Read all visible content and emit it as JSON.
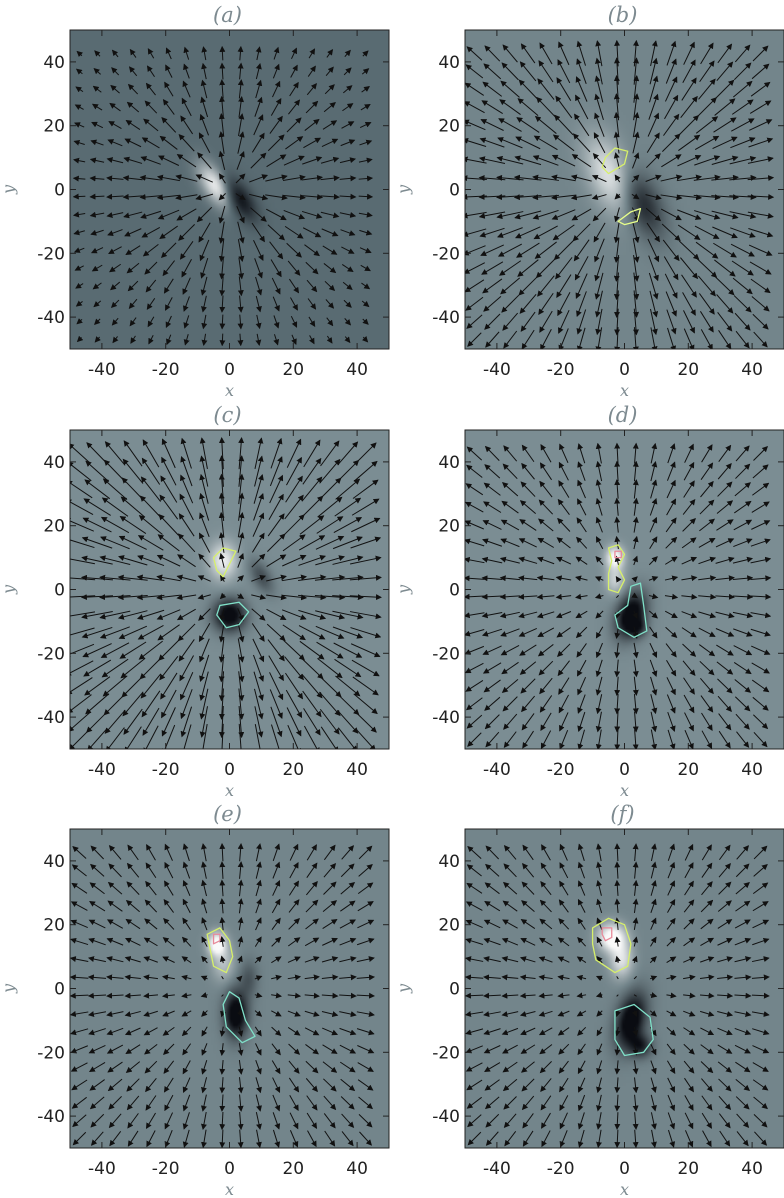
{
  "chart_data": [
    {
      "type": "heatmap",
      "panel_label": "(a)",
      "xlabel": "x",
      "ylabel": "y",
      "xlim": [
        -50,
        50
      ],
      "ylim": [
        -50,
        50
      ],
      "xticks": [
        -40,
        -20,
        0,
        20,
        40
      ],
      "yticks": [
        -40,
        -20,
        0,
        20,
        40
      ],
      "background_color": "#596b72",
      "field": "Bz magnetogram with horizontal velocity arrows",
      "sources": [
        {
          "x": -4,
          "y": 1,
          "sx": 2.6,
          "sy": 5.5,
          "rot": 35,
          "amp": 1.0
        },
        {
          "x": 3,
          "y": -3,
          "sx": 2.6,
          "sy": 5.5,
          "rot": 35,
          "amp": -1.0
        }
      ],
      "flow": {
        "center": [
          0,
          0
        ],
        "radius": 18,
        "strength": 1.0
      },
      "contours": []
    },
    {
      "type": "heatmap",
      "panel_label": "(b)",
      "xlabel": "x",
      "ylabel": "y",
      "xlim": [
        -50,
        50
      ],
      "ylim": [
        -50,
        50
      ],
      "xticks": [
        -40,
        -20,
        0,
        20,
        40
      ],
      "yticks": [
        -40,
        -20,
        0,
        20,
        40
      ],
      "background_color": "#73858b",
      "field": "Bz magnetogram with horizontal velocity arrows",
      "sources": [
        {
          "x": -4,
          "y": 4,
          "sx": 4.5,
          "sy": 9,
          "rot": 25,
          "amp": 0.9
        },
        {
          "x": 5,
          "y": -4,
          "sx": 4,
          "sy": 8,
          "rot": 25,
          "amp": -0.9
        }
      ],
      "flow": {
        "center": [
          0,
          0
        ],
        "radius": 32,
        "strength": 1.2
      },
      "contours": [
        {
          "color": "#d7f06a",
          "points": [
            [
              -6,
              10
            ],
            [
              -3,
              13
            ],
            [
              1,
              12
            ],
            [
              0,
              8
            ],
            [
              -5,
              5
            ],
            [
              -7,
              7
            ]
          ]
        },
        {
          "color": "#e8ff8a",
          "points": [
            [
              -2,
              -10
            ],
            [
              2,
              -7
            ],
            [
              5,
              -6
            ],
            [
              4,
              -10
            ],
            [
              0,
              -11
            ]
          ]
        }
      ]
    },
    {
      "type": "heatmap",
      "panel_label": "(c)",
      "xlabel": "x",
      "ylabel": "y",
      "xlim": [
        -50,
        50
      ],
      "ylim": [
        -50,
        50
      ],
      "xticks": [
        -40,
        -20,
        0,
        20,
        40
      ],
      "yticks": [
        -40,
        -20,
        0,
        20,
        40
      ],
      "background_color": "#7b8d93",
      "field": "Bz magnetogram with horizontal velocity arrows",
      "sources": [
        {
          "x": -2,
          "y": 9,
          "sx": 3,
          "sy": 4,
          "rot": 0,
          "amp": 0.9
        },
        {
          "x": 0,
          "y": -8,
          "sx": 3.5,
          "sy": 3.5,
          "rot": 0,
          "amp": -1.2
        },
        {
          "x": 10,
          "y": 4,
          "sx": 2,
          "sy": 4,
          "rot": 30,
          "amp": -0.5
        }
      ],
      "flow": {
        "center": [
          0,
          0
        ],
        "radius": 45,
        "strength": 1.4
      },
      "contours": [
        {
          "color": "#d7f06a",
          "points": [
            [
              -4,
              6
            ],
            [
              -5,
              10
            ],
            [
              -2,
              13
            ],
            [
              2,
              12
            ],
            [
              0,
              8
            ],
            [
              -2,
              4
            ]
          ]
        },
        {
          "color": "#7fe0c8",
          "points": [
            [
              -4,
              -8
            ],
            [
              -3,
              -5
            ],
            [
              3,
              -4
            ],
            [
              6,
              -7
            ],
            [
              3,
              -11
            ],
            [
              -1,
              -12
            ]
          ]
        }
      ]
    },
    {
      "type": "heatmap",
      "panel_label": "(d)",
      "xlabel": "x",
      "ylabel": "y",
      "xlim": [
        -50,
        50
      ],
      "ylim": [
        -50,
        50
      ],
      "xticks": [
        -40,
        -20,
        0,
        20,
        40
      ],
      "yticks": [
        -40,
        -20,
        0,
        20,
        40
      ],
      "background_color": "#7b8d93",
      "field": "Bz magnetogram with horizontal velocity arrows",
      "sources": [
        {
          "x": -3,
          "y": 10,
          "sx": 2,
          "sy": 2.5,
          "rot": 0,
          "amp": 1.1
        },
        {
          "x": -3,
          "y": 3,
          "sx": 2,
          "sy": 3,
          "rot": 0,
          "amp": 0.6
        },
        {
          "x": 2,
          "y": -8,
          "sx": 3,
          "sy": 5,
          "rot": -20,
          "amp": -1.3
        },
        {
          "x": 4,
          "y": -12,
          "sx": 2,
          "sy": 2,
          "rot": 0,
          "amp": -0.6
        }
      ],
      "flow": {
        "center": [
          0,
          0
        ],
        "radius": 48,
        "strength": 0.9
      },
      "contours": [
        {
          "color": "#d7f06a",
          "points": [
            [
              -5,
              13
            ],
            [
              -2,
              14
            ],
            [
              0,
              11
            ],
            [
              -2,
              7
            ],
            [
              0,
              3
            ],
            [
              -2,
              -1
            ],
            [
              -5,
              0
            ],
            [
              -5,
              5
            ],
            [
              -4,
              9
            ]
          ]
        },
        {
          "color": "#e88a9a",
          "points": [
            [
              -3,
              12
            ],
            [
              -1,
              12
            ],
            [
              -1,
              10
            ],
            [
              -3,
              10
            ]
          ]
        },
        {
          "color": "#7fe0c8",
          "points": [
            [
              2,
              1
            ],
            [
              5,
              2
            ],
            [
              6,
              -5
            ],
            [
              7,
              -13
            ],
            [
              3,
              -15
            ],
            [
              -2,
              -12
            ],
            [
              -3,
              -8
            ],
            [
              1,
              -5
            ]
          ]
        }
      ]
    },
    {
      "type": "heatmap",
      "panel_label": "(e)",
      "xlabel": "x",
      "ylabel": "y",
      "xlim": [
        -50,
        50
      ],
      "ylim": [
        -50,
        50
      ],
      "xticks": [
        -40,
        -20,
        0,
        20,
        40
      ],
      "yticks": [
        -40,
        -20,
        0,
        20,
        40
      ],
      "background_color": "#73858b",
      "field": "Bz magnetogram with horizontal velocity arrows",
      "sources": [
        {
          "x": -4,
          "y": 14,
          "sx": 2,
          "sy": 2.5,
          "rot": 0,
          "amp": 1.2
        },
        {
          "x": -2,
          "y": 8,
          "sx": 2.5,
          "sy": 4,
          "rot": 0,
          "amp": 0.5
        },
        {
          "x": 2,
          "y": -8,
          "sx": 2.5,
          "sy": 5,
          "rot": 0,
          "amp": -1.3
        },
        {
          "x": 6,
          "y": 3,
          "sx": 2,
          "sy": 4,
          "rot": 0,
          "amp": -0.4
        }
      ],
      "flow": {
        "center": [
          0,
          0
        ],
        "radius": 55,
        "strength": 0.8
      },
      "contours": [
        {
          "color": "#d7f06a",
          "points": [
            [
              -7,
              17
            ],
            [
              -3,
              19
            ],
            [
              0,
              15
            ],
            [
              1,
              10
            ],
            [
              -1,
              5
            ],
            [
              -5,
              7
            ],
            [
              -6,
              12
            ]
          ]
        },
        {
          "color": "#e88a9a",
          "points": [
            [
              -5,
              17
            ],
            [
              -3,
              17
            ],
            [
              -3,
              15
            ],
            [
              -5,
              14
            ]
          ]
        },
        {
          "color": "#7fe0c8",
          "points": [
            [
              0,
              -1
            ],
            [
              3,
              -3
            ],
            [
              5,
              -10
            ],
            [
              8,
              -15
            ],
            [
              4,
              -17
            ],
            [
              -1,
              -12
            ],
            [
              -2,
              -5
            ]
          ]
        }
      ]
    },
    {
      "type": "heatmap",
      "panel_label": "(f)",
      "xlabel": "x",
      "ylabel": "y",
      "xlim": [
        -50,
        50
      ],
      "ylim": [
        -50,
        50
      ],
      "xticks": [
        -40,
        -20,
        0,
        20,
        40
      ],
      "yticks": [
        -40,
        -20,
        0,
        20,
        40
      ],
      "background_color": "#73858b",
      "field": "Bz magnetogram with horizontal velocity arrows",
      "sources": [
        {
          "x": -4,
          "y": 16,
          "sx": 3,
          "sy": 3,
          "rot": 0,
          "amp": 1.2
        },
        {
          "x": -1,
          "y": 9,
          "sx": 2.5,
          "sy": 4,
          "rot": 0,
          "amp": 0.8
        },
        {
          "x": 2,
          "y": -10,
          "sx": 3,
          "sy": 6,
          "rot": -15,
          "amp": -1.3
        },
        {
          "x": 5,
          "y": -18,
          "sx": 2.5,
          "sy": 2.5,
          "rot": 0,
          "amp": -0.8
        }
      ],
      "flow": {
        "center": [
          0,
          0
        ],
        "radius": 60,
        "strength": 0.8
      },
      "contours": [
        {
          "color": "#d7f06a",
          "points": [
            [
              -10,
              19
            ],
            [
              -5,
              22
            ],
            [
              0,
              20
            ],
            [
              2,
              14
            ],
            [
              1,
              7
            ],
            [
              -3,
              5
            ],
            [
              -9,
              9
            ],
            [
              -10,
              14
            ]
          ]
        },
        {
          "color": "#e88a9a",
          "points": [
            [
              -7,
              19
            ],
            [
              -4,
              19
            ],
            [
              -4,
              16
            ],
            [
              -6,
              15
            ],
            [
              -7,
              17
            ]
          ]
        },
        {
          "color": "#7fe0c8",
          "points": [
            [
              -3,
              -7
            ],
            [
              3,
              -5
            ],
            [
              8,
              -9
            ],
            [
              9,
              -16
            ],
            [
              6,
              -20
            ],
            [
              0,
              -21
            ],
            [
              -3,
              -16
            ]
          ]
        }
      ]
    }
  ]
}
